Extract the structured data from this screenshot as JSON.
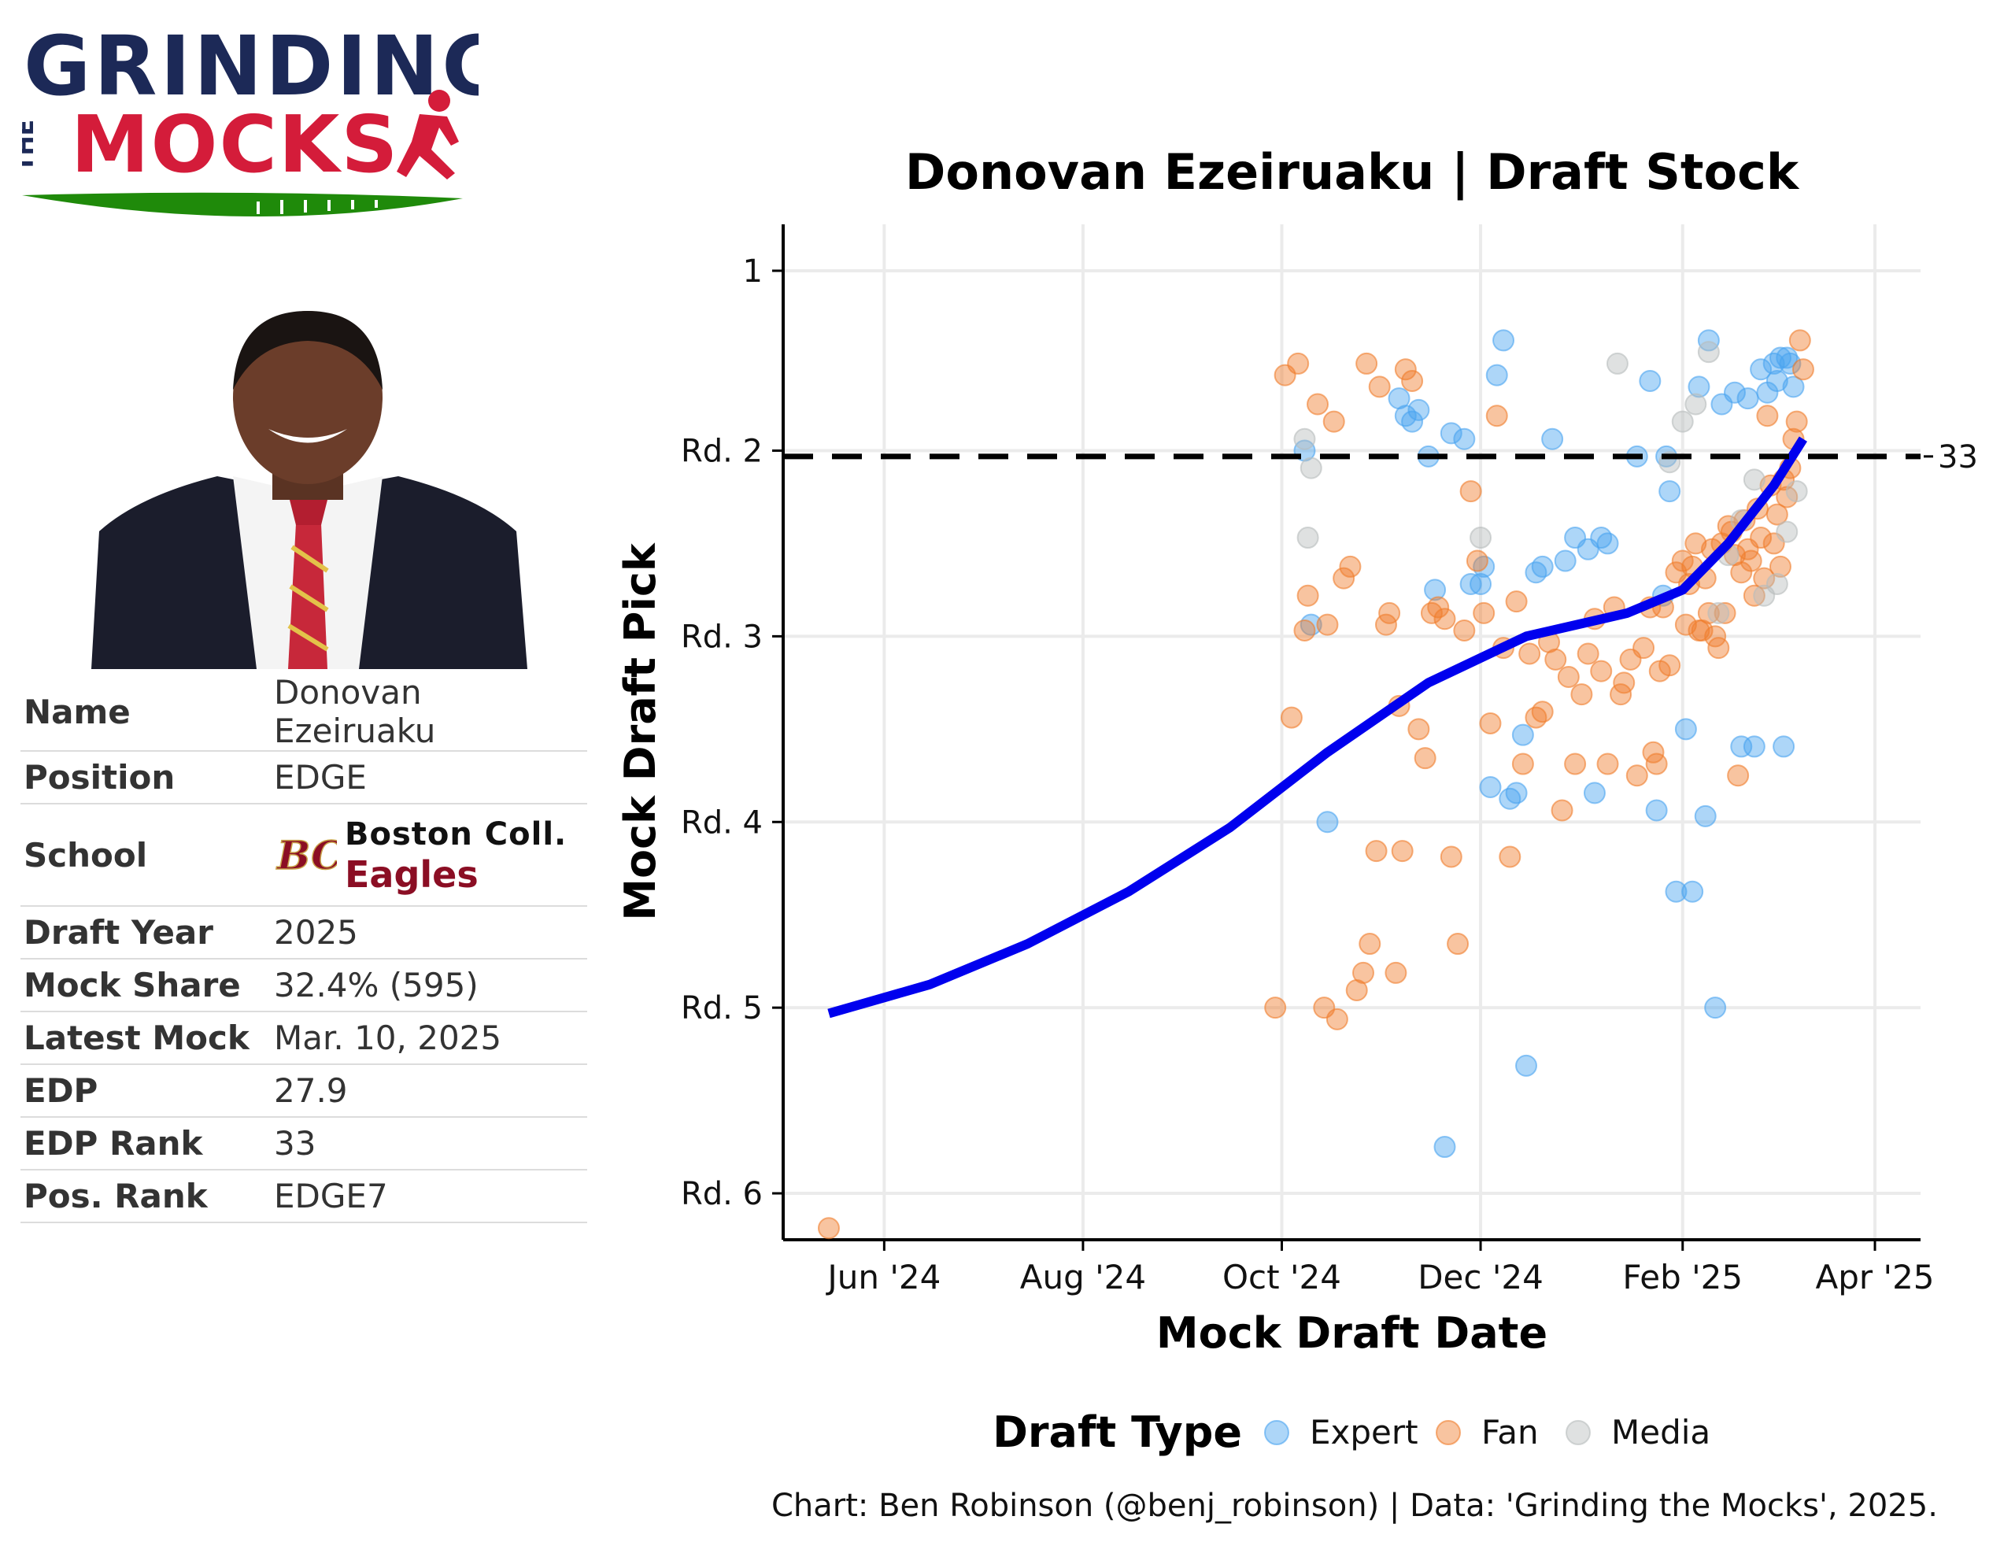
{
  "branding": {
    "line1": "GRINDING",
    "line2_small": "THE",
    "line2": "MOCKS",
    "color_navy": "#1c2957",
    "color_red": "#d41c3a",
    "color_green": "#1f8a0a"
  },
  "player_card": {
    "rows": [
      {
        "label": "Name",
        "value": "Donovan Ezeiruaku"
      },
      {
        "label": "Position",
        "value": "EDGE"
      },
      {
        "label": "Draft Year",
        "value": "2025"
      },
      {
        "label": "Mock Share",
        "value": "32.4% (595)"
      },
      {
        "label": "Latest Mock",
        "value": "Mar. 10, 2025"
      },
      {
        "label": "EDP",
        "value": "27.9"
      },
      {
        "label": "EDP Rank",
        "value": "33"
      },
      {
        "label": "Pos. Rank",
        "value": "EDGE7"
      }
    ],
    "school_label": "School",
    "school_name": "Boston Coll.",
    "school_mascot": "Eagles",
    "school_logo_text": "BC"
  },
  "chart_data": {
    "type": "scatter",
    "title": "Donovan Ezeiruaku | Draft Stock",
    "xlabel": "Mock Draft Date",
    "ylabel": "Mock Draft Pick",
    "x_ticks": [
      {
        "date": "2024-06-01",
        "label": "Jun '24"
      },
      {
        "date": "2024-08-01",
        "label": "Aug '24"
      },
      {
        "date": "2024-10-01",
        "label": "Oct '24"
      },
      {
        "date": "2024-12-01",
        "label": "Dec '24"
      },
      {
        "date": "2025-02-01",
        "label": "Feb '25"
      },
      {
        "date": "2025-04-01",
        "label": "Apr '25"
      }
    ],
    "y_ticks": [
      {
        "pick": 1,
        "label": "1"
      },
      {
        "pick": 32,
        "label": "Rd. 2"
      },
      {
        "pick": 64,
        "label": "Rd. 3"
      },
      {
        "pick": 96,
        "label": "Rd. 4"
      },
      {
        "pick": 128,
        "label": "Rd. 5"
      },
      {
        "pick": 160,
        "label": "Rd. 6"
      }
    ],
    "xlim": [
      "2024-05-01",
      "2025-04-15"
    ],
    "ylim": [
      168,
      -7
    ],
    "y_reversed": true,
    "grid": true,
    "reference_line": {
      "pick": 33,
      "label": "33"
    },
    "legend": {
      "title": "Draft Type",
      "position": "bottom"
    },
    "series": [
      {
        "name": "Expert",
        "color": "#4aa3f0",
        "points": [
          [
            "2024-10-08",
            32
          ],
          [
            "2024-10-10",
            62
          ],
          [
            "2024-10-15",
            96
          ],
          [
            "2024-11-06",
            23
          ],
          [
            "2024-11-08",
            26
          ],
          [
            "2024-11-10",
            27
          ],
          [
            "2024-11-12",
            25
          ],
          [
            "2024-11-15",
            33
          ],
          [
            "2024-11-17",
            56
          ],
          [
            "2024-11-20",
            152
          ],
          [
            "2024-11-22",
            29
          ],
          [
            "2024-11-26",
            30
          ],
          [
            "2024-11-28",
            55
          ],
          [
            "2024-12-01",
            55
          ],
          [
            "2024-12-02",
            52
          ],
          [
            "2024-12-04",
            90
          ],
          [
            "2024-12-06",
            19
          ],
          [
            "2024-12-08",
            13
          ],
          [
            "2024-12-10",
            92
          ],
          [
            "2024-12-12",
            91
          ],
          [
            "2024-12-14",
            81
          ],
          [
            "2024-12-15",
            138
          ],
          [
            "2024-12-18",
            53
          ],
          [
            "2024-12-20",
            52
          ],
          [
            "2024-12-23",
            30
          ],
          [
            "2024-12-27",
            51
          ],
          [
            "2024-12-30",
            47
          ],
          [
            "2025-01-03",
            49
          ],
          [
            "2025-01-05",
            91
          ],
          [
            "2025-01-07",
            47
          ],
          [
            "2025-01-09",
            48
          ],
          [
            "2025-01-18",
            33
          ],
          [
            "2025-01-22",
            20
          ],
          [
            "2025-01-24",
            94
          ],
          [
            "2025-01-26",
            57
          ],
          [
            "2025-01-27",
            33
          ],
          [
            "2025-01-28",
            39
          ],
          [
            "2025-01-30",
            108
          ],
          [
            "2025-02-02",
            80
          ],
          [
            "2025-02-04",
            108
          ],
          [
            "2025-02-06",
            21
          ],
          [
            "2025-02-08",
            95
          ],
          [
            "2025-02-09",
            13
          ],
          [
            "2025-02-11",
            128
          ],
          [
            "2025-02-13",
            24
          ],
          [
            "2025-02-17",
            22
          ],
          [
            "2025-02-19",
            83
          ],
          [
            "2025-02-21",
            23
          ],
          [
            "2025-02-23",
            83
          ],
          [
            "2025-02-25",
            18
          ],
          [
            "2025-02-27",
            22
          ],
          [
            "2025-03-01",
            17
          ],
          [
            "2025-03-02",
            20
          ],
          [
            "2025-03-03",
            16
          ],
          [
            "2025-03-04",
            83
          ],
          [
            "2025-03-05",
            16
          ],
          [
            "2025-03-06",
            17
          ],
          [
            "2025-03-07",
            21
          ]
        ]
      },
      {
        "name": "Fan",
        "color": "#f07d2c",
        "points": [
          [
            "2024-05-15",
            166
          ],
          [
            "2024-09-29",
            128
          ],
          [
            "2024-10-02",
            19
          ],
          [
            "2024-10-04",
            78
          ],
          [
            "2024-10-06",
            17
          ],
          [
            "2024-10-08",
            63
          ],
          [
            "2024-10-09",
            57
          ],
          [
            "2024-10-12",
            24
          ],
          [
            "2024-10-14",
            128
          ],
          [
            "2024-10-15",
            62
          ],
          [
            "2024-10-17",
            27
          ],
          [
            "2024-10-18",
            130
          ],
          [
            "2024-10-20",
            54
          ],
          [
            "2024-10-22",
            52
          ],
          [
            "2024-10-24",
            125
          ],
          [
            "2024-10-26",
            122
          ],
          [
            "2024-10-27",
            17
          ],
          [
            "2024-10-28",
            117
          ],
          [
            "2024-10-30",
            101
          ],
          [
            "2024-10-31",
            21
          ],
          [
            "2024-11-02",
            62
          ],
          [
            "2024-11-03",
            60
          ],
          [
            "2024-11-05",
            122
          ],
          [
            "2024-11-06",
            76
          ],
          [
            "2024-11-07",
            101
          ],
          [
            "2024-11-08",
            18
          ],
          [
            "2024-11-10",
            20
          ],
          [
            "2024-11-12",
            80
          ],
          [
            "2024-11-14",
            85
          ],
          [
            "2024-11-16",
            60
          ],
          [
            "2024-11-18",
            59
          ],
          [
            "2024-11-20",
            61
          ],
          [
            "2024-11-22",
            102
          ],
          [
            "2024-11-24",
            117
          ],
          [
            "2024-11-26",
            63
          ],
          [
            "2024-11-28",
            39
          ],
          [
            "2024-11-30",
            51
          ],
          [
            "2024-12-02",
            60
          ],
          [
            "2024-12-04",
            79
          ],
          [
            "2024-12-06",
            26
          ],
          [
            "2024-12-08",
            66
          ],
          [
            "2024-12-10",
            102
          ],
          [
            "2024-12-12",
            58
          ],
          [
            "2024-12-14",
            86
          ],
          [
            "2024-12-16",
            67
          ],
          [
            "2024-12-18",
            78
          ],
          [
            "2024-12-20",
            77
          ],
          [
            "2024-12-22",
            65
          ],
          [
            "2024-12-24",
            68
          ],
          [
            "2024-12-26",
            94
          ],
          [
            "2024-12-28",
            71
          ],
          [
            "2024-12-30",
            86
          ],
          [
            "2025-01-01",
            74
          ],
          [
            "2025-01-03",
            67
          ],
          [
            "2025-01-05",
            61
          ],
          [
            "2025-01-07",
            70
          ],
          [
            "2025-01-09",
            86
          ],
          [
            "2025-01-11",
            59
          ],
          [
            "2025-01-13",
            74
          ],
          [
            "2025-01-14",
            72
          ],
          [
            "2025-01-16",
            68
          ],
          [
            "2025-01-18",
            88
          ],
          [
            "2025-01-20",
            66
          ],
          [
            "2025-01-22",
            59
          ],
          [
            "2025-01-23",
            84
          ],
          [
            "2025-01-24",
            86
          ],
          [
            "2025-01-25",
            70
          ],
          [
            "2025-01-26",
            59
          ],
          [
            "2025-01-28",
            69
          ],
          [
            "2025-01-30",
            53
          ],
          [
            "2025-02-01",
            51
          ],
          [
            "2025-02-02",
            62
          ],
          [
            "2025-02-03",
            55
          ],
          [
            "2025-02-04",
            52
          ],
          [
            "2025-02-05",
            48
          ],
          [
            "2025-02-06",
            63
          ],
          [
            "2025-02-07",
            63
          ],
          [
            "2025-02-08",
            54
          ],
          [
            "2025-02-09",
            60
          ],
          [
            "2025-02-10",
            49
          ],
          [
            "2025-02-11",
            64
          ],
          [
            "2025-02-12",
            66
          ],
          [
            "2025-02-13",
            48
          ],
          [
            "2025-02-14",
            60
          ],
          [
            "2025-02-15",
            45
          ],
          [
            "2025-02-16",
            46
          ],
          [
            "2025-02-17",
            50
          ],
          [
            "2025-02-18",
            88
          ],
          [
            "2025-02-19",
            53
          ],
          [
            "2025-02-20",
            44
          ],
          [
            "2025-02-21",
            49
          ],
          [
            "2025-02-22",
            51
          ],
          [
            "2025-02-23",
            57
          ],
          [
            "2025-02-24",
            42
          ],
          [
            "2025-02-25",
            47
          ],
          [
            "2025-02-26",
            54
          ],
          [
            "2025-02-27",
            26
          ],
          [
            "2025-02-28",
            38
          ],
          [
            "2025-03-01",
            48
          ],
          [
            "2025-03-02",
            43
          ],
          [
            "2025-03-03",
            52
          ],
          [
            "2025-03-04",
            37
          ],
          [
            "2025-03-05",
            40
          ],
          [
            "2025-03-06",
            35
          ],
          [
            "2025-03-07",
            30
          ],
          [
            "2025-03-08",
            27
          ],
          [
            "2025-03-09",
            13
          ],
          [
            "2025-03-10",
            18
          ]
        ]
      },
      {
        "name": "Media",
        "color": "#b8bcbc",
        "points": [
          [
            "2024-10-08",
            30
          ],
          [
            "2024-10-10",
            35
          ],
          [
            "2024-10-09",
            47
          ],
          [
            "2024-12-01",
            47
          ],
          [
            "2025-01-12",
            17
          ],
          [
            "2025-01-28",
            34
          ],
          [
            "2025-02-01",
            27
          ],
          [
            "2025-02-05",
            24
          ],
          [
            "2025-02-09",
            15
          ],
          [
            "2025-02-12",
            60
          ],
          [
            "2025-02-15",
            50
          ],
          [
            "2025-02-19",
            44
          ],
          [
            "2025-02-23",
            37
          ],
          [
            "2025-02-26",
            57
          ],
          [
            "2025-03-02",
            55
          ],
          [
            "2025-03-05",
            46
          ],
          [
            "2025-03-08",
            39
          ]
        ]
      }
    ],
    "trend": {
      "color": "#0000ee",
      "points": [
        [
          "2024-05-15",
          129
        ],
        [
          "2024-06-15",
          124
        ],
        [
          "2024-07-15",
          117
        ],
        [
          "2024-08-15",
          108
        ],
        [
          "2024-09-15",
          97
        ],
        [
          "2024-10-15",
          84
        ],
        [
          "2024-11-15",
          72
        ],
        [
          "2024-12-15",
          64
        ],
        [
          "2025-01-15",
          60
        ],
        [
          "2025-02-01",
          56
        ],
        [
          "2025-02-15",
          48
        ],
        [
          "2025-03-01",
          38
        ],
        [
          "2025-03-10",
          30
        ]
      ]
    }
  },
  "footer": {
    "note": "Chart: Ben Robinson (@benj_robinson) | Data: 'Grinding the Mocks', 2025."
  }
}
